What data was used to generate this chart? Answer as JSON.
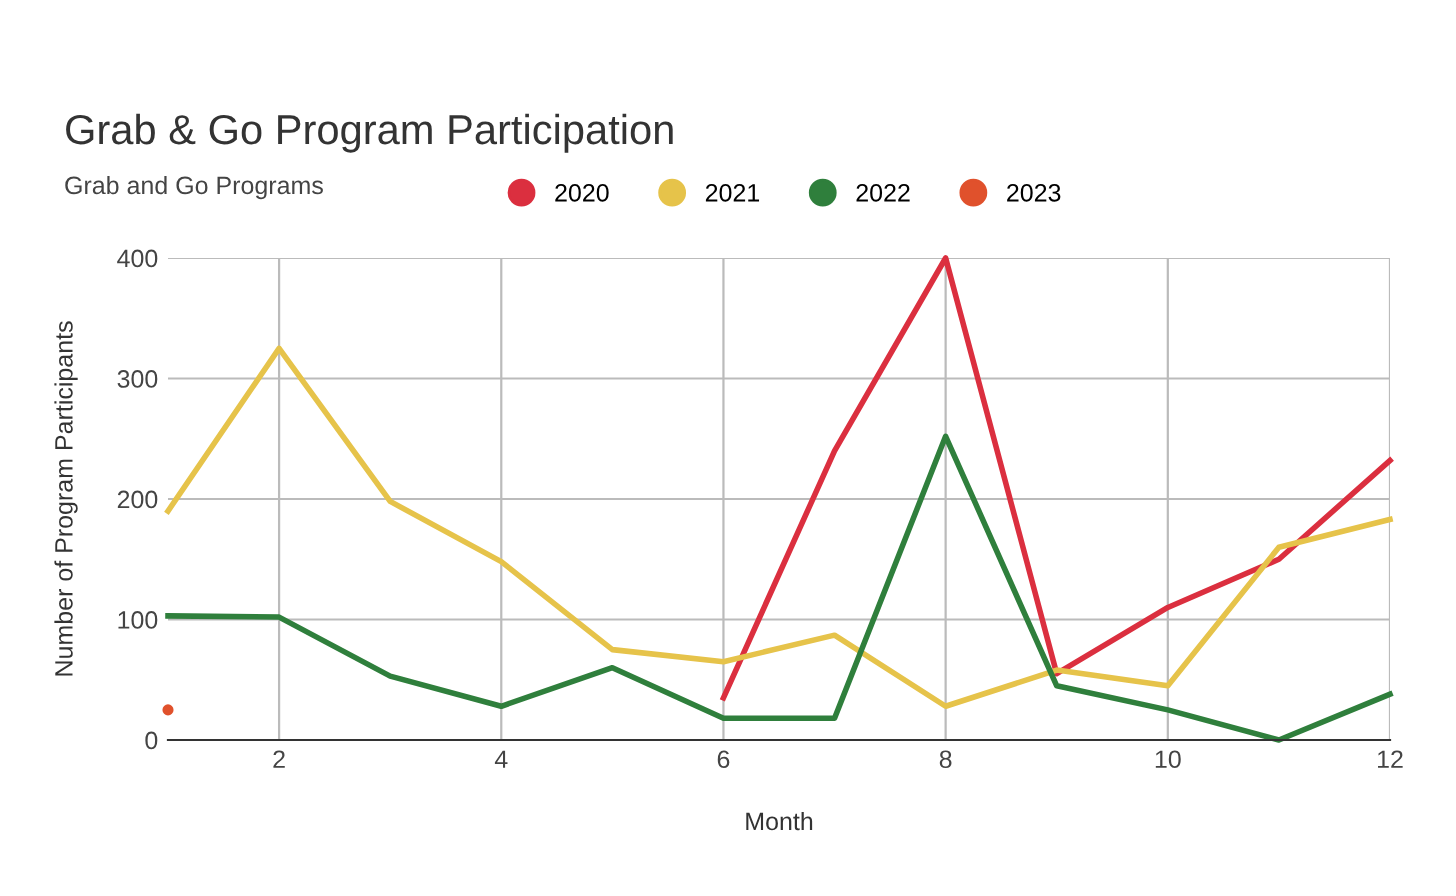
{
  "chart_data": {
    "type": "line",
    "title": "Grab & Go Program Participation",
    "subtitle": "Grab and Go Programs",
    "xlabel": "Month",
    "ylabel": "Number of Program Participants",
    "x": [
      1,
      2,
      3,
      4,
      5,
      6,
      7,
      8,
      9,
      10,
      11,
      12
    ],
    "series": [
      {
        "name": "2020",
        "color": "#db2f3f",
        "values": [
          null,
          null,
          null,
          null,
          null,
          35,
          240,
          400,
          55,
          110,
          150,
          232
        ]
      },
      {
        "name": "2021",
        "color": "#e6c34a",
        "values": [
          190,
          325,
          198,
          148,
          75,
          65,
          87,
          28,
          58,
          45,
          160,
          183
        ]
      },
      {
        "name": "2022",
        "color": "#2f7f3c",
        "values": [
          103,
          102,
          53,
          28,
          60,
          18,
          18,
          252,
          45,
          25,
          0,
          38
        ]
      },
      {
        "name": "2023",
        "color": "#e0512c",
        "marker": "circle",
        "values": [
          25,
          null,
          null,
          null,
          null,
          null,
          null,
          null,
          null,
          null,
          null,
          null
        ]
      }
    ],
    "xlim": [
      1,
      12
    ],
    "xticks": [
      2,
      4,
      6,
      8,
      10,
      12
    ],
    "ylim": [
      0,
      400
    ],
    "yticks": [
      0,
      100,
      200,
      300,
      400
    ],
    "grid": true,
    "legend": "top",
    "marker": "none",
    "line_style": "solid"
  }
}
